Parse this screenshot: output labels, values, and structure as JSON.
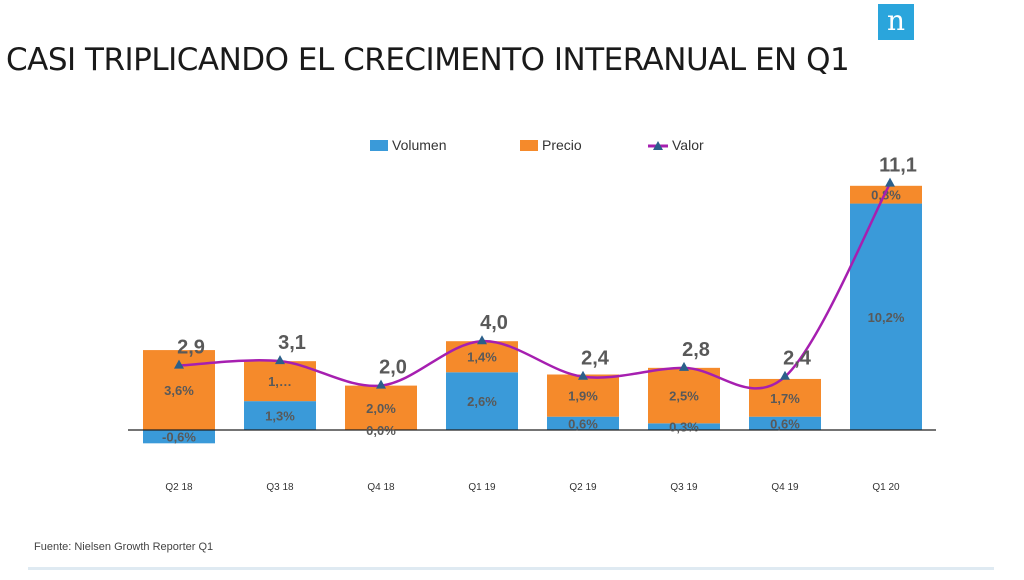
{
  "brand": {
    "logo_letter": "n",
    "logo_color": "#2aa5dc"
  },
  "title": "CASI TRIPLICANDO EL CRECIMENTO INTERANUAL EN Q1",
  "source": "Fuente: Nielsen Growth Reporter Q1",
  "colors": {
    "volumen": "#3a9ad9",
    "precio": "#f58a2b",
    "valor": "#a61fb0",
    "marker": "#2b5f8a",
    "label": "#595959"
  },
  "chart_data": {
    "type": "bar",
    "stacked": true,
    "categories": [
      "Q2 18",
      "Q3 18",
      "Q4 18",
      "Q1 19",
      "Q2 19",
      "Q3 19",
      "Q4 19",
      "Q1 20"
    ],
    "series": [
      {
        "name": "Volumen",
        "kind": "bar",
        "values": [
          -0.6,
          1.3,
          0.0,
          2.6,
          0.6,
          0.3,
          0.6,
          10.2
        ],
        "labels": [
          "-0,6%",
          "1,3%",
          "0,0%",
          "2,6%",
          "0,6%",
          "0,3%",
          "0,6%",
          "10,2%"
        ]
      },
      {
        "name": "Precio",
        "kind": "bar",
        "values": [
          3.6,
          1.8,
          2.0,
          1.4,
          1.9,
          2.5,
          1.7,
          0.8
        ],
        "labels": [
          "3,6%",
          "1,…",
          "2,0%",
          "1,4%",
          "1,9%",
          "2,5%",
          "1,7%",
          "0,8%"
        ]
      },
      {
        "name": "Valor",
        "kind": "line",
        "values": [
          2.9,
          3.1,
          2.0,
          4.0,
          2.4,
          2.8,
          2.4,
          11.1
        ],
        "labels": [
          "2,9",
          "3,1",
          "2,0",
          "4,0",
          "2,4",
          "2,8",
          "2,4",
          "11,1"
        ]
      }
    ],
    "legend_position": "top",
    "grid": false
  }
}
